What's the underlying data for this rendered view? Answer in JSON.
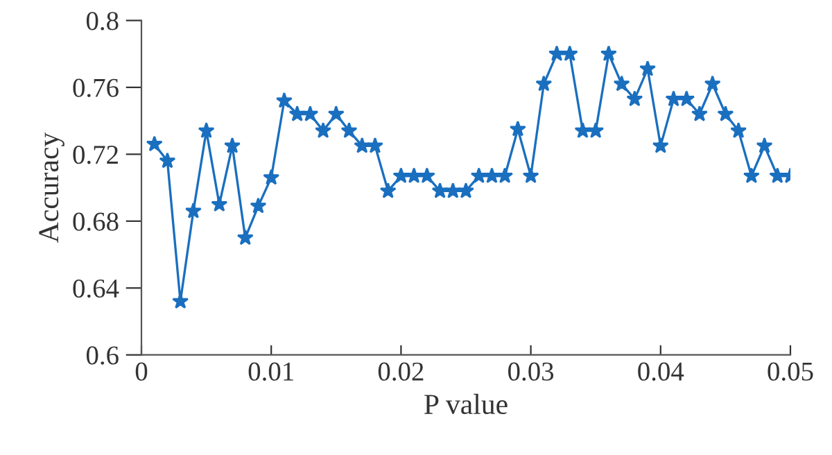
{
  "chart_data": {
    "type": "line",
    "xlabel": "P value",
    "ylabel": "Accuracy",
    "x": [
      0.001,
      0.002,
      0.003,
      0.004,
      0.005,
      0.006,
      0.007,
      0.008,
      0.009,
      0.01,
      0.011,
      0.012,
      0.013,
      0.014,
      0.015,
      0.016,
      0.017,
      0.018,
      0.019,
      0.02,
      0.021,
      0.022,
      0.023,
      0.024,
      0.025,
      0.026,
      0.027,
      0.028,
      0.029,
      0.03,
      0.031,
      0.032,
      0.033,
      0.034,
      0.035,
      0.036,
      0.037,
      0.038,
      0.039,
      0.04,
      0.041,
      0.042,
      0.043,
      0.044,
      0.045,
      0.046,
      0.047,
      0.048,
      0.049,
      0.05
    ],
    "series": [
      {
        "color": "#1a6fbf",
        "values": [
          0.726,
          0.716,
          0.632,
          0.686,
          0.734,
          0.69,
          0.725,
          0.67,
          0.689,
          0.706,
          0.752,
          0.744,
          0.744,
          0.734,
          0.744,
          0.734,
          0.725,
          0.725,
          0.698,
          0.707,
          0.707,
          0.707,
          0.698,
          0.698,
          0.698,
          0.707,
          0.707,
          0.707,
          0.735,
          0.707,
          0.762,
          0.78,
          0.78,
          0.734,
          0.734,
          0.78,
          0.762,
          0.753,
          0.771,
          0.725,
          0.753,
          0.753,
          0.744,
          0.762,
          0.744,
          0.734,
          0.707,
          0.725,
          0.707,
          0.707
        ]
      }
    ],
    "xlim": [
      0,
      0.05
    ],
    "xticks": [
      0,
      0.01,
      0.02,
      0.03,
      0.04,
      0.05
    ],
    "ylim": [
      0.6,
      0.8
    ],
    "yticks": [
      0.6,
      0.64,
      0.68,
      0.72,
      0.76,
      0.8
    ],
    "grid": false,
    "legend": false,
    "marker": "star",
    "line_style": "solid"
  }
}
